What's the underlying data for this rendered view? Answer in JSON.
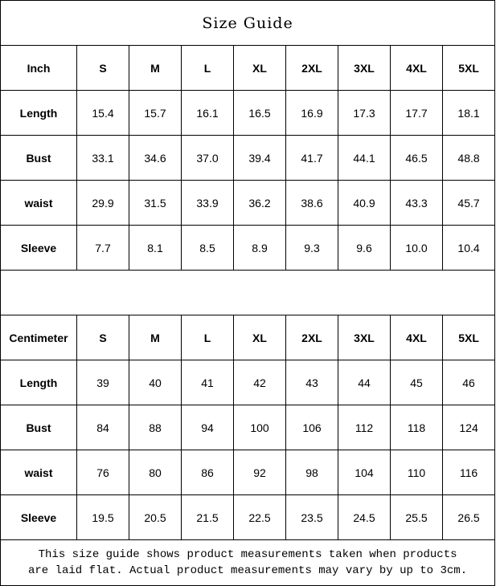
{
  "title": "Size Guide",
  "sizes": [
    "S",
    "M",
    "L",
    "XL",
    "2XL",
    "3XL",
    "4XL",
    "5XL"
  ],
  "inch": {
    "unit_label": "Inch",
    "rows": [
      {
        "label": "Length",
        "values": [
          "15.4",
          "15.7",
          "16.1",
          "16.5",
          "16.9",
          "17.3",
          "17.7",
          "18.1"
        ]
      },
      {
        "label": "Bust",
        "values": [
          "33.1",
          "34.6",
          "37.0",
          "39.4",
          "41.7",
          "44.1",
          "46.5",
          "48.8"
        ]
      },
      {
        "label": "waist",
        "values": [
          "29.9",
          "31.5",
          "33.9",
          "36.2",
          "38.6",
          "40.9",
          "43.3",
          "45.7"
        ]
      },
      {
        "label": "Sleeve",
        "values": [
          "7.7",
          "8.1",
          "8.5",
          "8.9",
          "9.3",
          "9.6",
          "10.0",
          "10.4"
        ]
      }
    ]
  },
  "centimeter": {
    "unit_label": "Centimeter",
    "rows": [
      {
        "label": "Length",
        "values": [
          "39",
          "40",
          "41",
          "42",
          "43",
          "44",
          "45",
          "46"
        ]
      },
      {
        "label": "Bust",
        "values": [
          "84",
          "88",
          "94",
          "100",
          "106",
          "112",
          "118",
          "124"
        ]
      },
      {
        "label": "waist",
        "values": [
          "76",
          "80",
          "86",
          "92",
          "98",
          "104",
          "110",
          "116"
        ]
      },
      {
        "label": "Sleeve",
        "values": [
          "19.5",
          "20.5",
          "21.5",
          "22.5",
          "23.5",
          "24.5",
          "25.5",
          "26.5"
        ]
      }
    ]
  },
  "note": {
    "line1": "This size guide shows product measurements taken when products",
    "line2": "are laid flat. Actual product measurements may vary by up to 3cm."
  }
}
